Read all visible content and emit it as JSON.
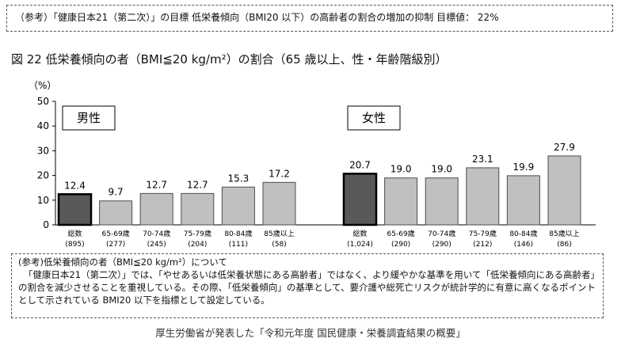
{
  "top_note": "（参考）「健康日本21（第二次）」の目標 低栄養傾向（BMI20 以下）の高齢者の割合の増加の抑制 目標値： 22%",
  "figure_title": "図 22 低栄養傾向の者（BMI≦20 kg/m²）の割合（65 歳以上、性・年齢階級別）",
  "chart_data": {
    "type": "bar",
    "ylabel": "（%）",
    "ylim": [
      0,
      50
    ],
    "yticks": [
      0,
      10,
      20,
      30,
      40,
      50
    ],
    "grid": false,
    "categories": [
      "総数",
      "65-69歳",
      "70-74歳",
      "75-79歳",
      "80-84歳",
      "85歳以上"
    ],
    "panels": [
      {
        "label": "男性",
        "values": [
          12.4,
          9.7,
          12.7,
          12.7,
          15.3,
          17.2
        ],
        "value_labels": [
          "12.4",
          "9.7",
          "12.7",
          "12.7",
          "15.3",
          "17.2"
        ],
        "n": [
          "(895)",
          "(277)",
          "(245)",
          "(204)",
          "(111)",
          "(58)"
        ]
      },
      {
        "label": "女性",
        "values": [
          20.7,
          19.0,
          19.0,
          23.1,
          19.9,
          27.9
        ],
        "value_labels": [
          "20.7",
          "19.0",
          "19.0",
          "23.1",
          "19.9",
          "27.9"
        ],
        "n": [
          "(1,024)",
          "(290)",
          "(290)",
          "(212)",
          "(146)",
          "(86)"
        ]
      }
    ],
    "colors": {
      "total_fill": "#595959",
      "total_stroke": "#000000",
      "age_fill": "#c0c0c0",
      "age_stroke": "#4d4d4d"
    }
  },
  "bottom_note": {
    "heading": "(参考)低栄養傾向の者（BMI≦20 kg/m²）について",
    "body": "「健康日本21（第二次）」では、「やせあるいは低栄養状態にある高齢者」ではなく、より緩やかな基準を用いて「低栄養傾向にある高齢者」の割合を減少させることを重視している。その際、「低栄養傾向」の基準として、要介護や総死亡リスクが統計学的に有意に高くなるポイントとして示されている BMI20 以下を指標として設定している。"
  },
  "source": "厚生労働省が発表した「令和元年度 国民健康・栄養調査結果の概要」"
}
